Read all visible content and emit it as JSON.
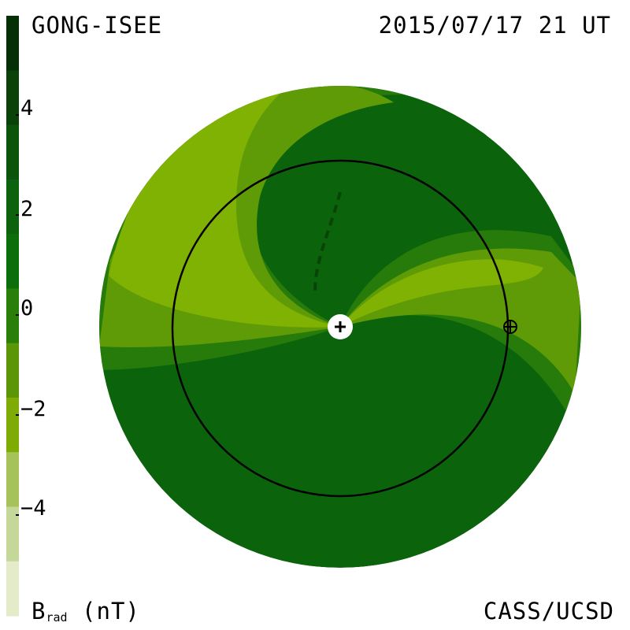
{
  "header": {
    "source": "GONG-ISEE",
    "timestamp": "2015/07/17 21 UT"
  },
  "footer": {
    "credit": "CASS/UCSD",
    "colorbar_symbol": "B",
    "colorbar_subscript": "rad",
    "colorbar_unit": "(nT)"
  },
  "colorbar": {
    "ticks": [
      "4",
      "2",
      "0",
      "−2",
      "−4"
    ],
    "colors": [
      "#052f05",
      "#0a420a",
      "#0c530c",
      "#0d620d",
      "#0b6e0b",
      "#2a7f0a",
      "#5a9607",
      "#7fab05",
      "#a6c25a",
      "#c6d79a",
      "#e3ebc9"
    ]
  },
  "map": {
    "sun_icon": "sun-plus-icon",
    "earth_icon": "earth-icon",
    "colors": {
      "dark_positive": "#0b640b",
      "mid_positive": "#267b0a",
      "mid_negative": "#5f9b06",
      "light_negative": "#7fb203"
    }
  }
}
